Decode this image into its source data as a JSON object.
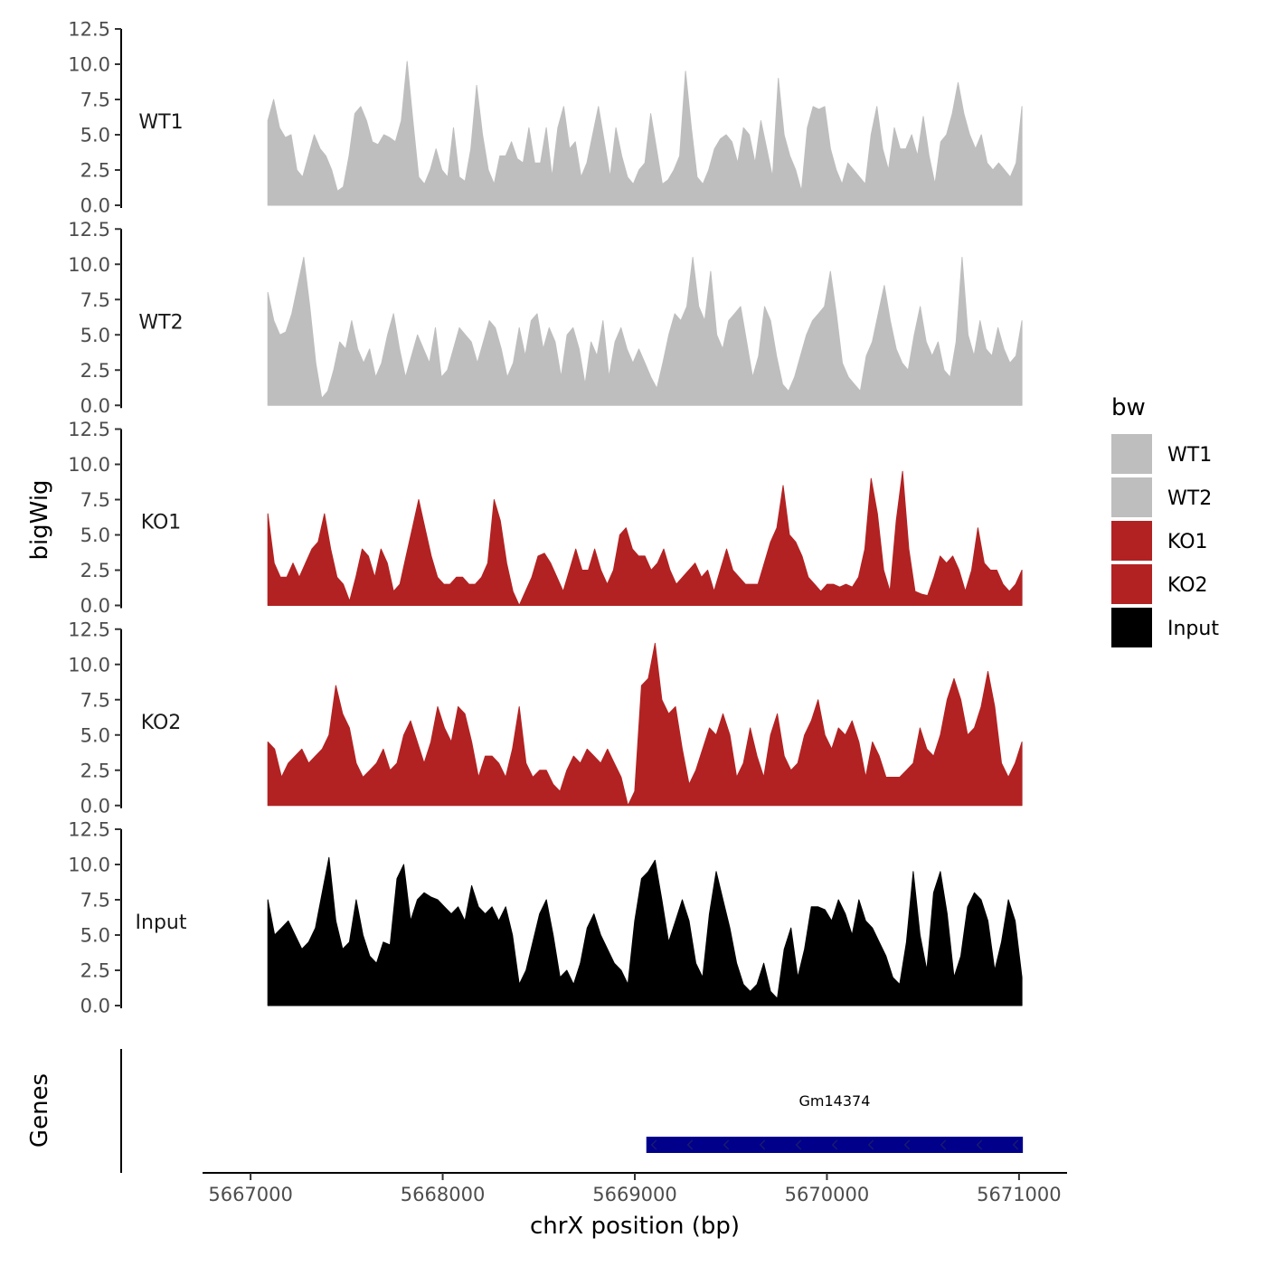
{
  "chart_data": {
    "type": "area",
    "ylabel": "bigWig",
    "xlabel": "chrX position (bp)",
    "y_ticks": [
      "0.0",
      "2.5",
      "5.0",
      "7.5",
      "10.0",
      "12.5"
    ],
    "y_tick_values": [
      0,
      2.5,
      5,
      7.5,
      10,
      12.5
    ],
    "ylim": [
      0,
      12.5
    ],
    "x_ticks": [
      "5667000",
      "5668000",
      "5669000",
      "5670000",
      "5671000"
    ],
    "x_tick_values": [
      5667000,
      5668000,
      5669000,
      5670000,
      5671000
    ],
    "xlim": [
      5666750,
      5671250
    ],
    "x_range": [
      5667000,
      5671000
    ],
    "series": [
      {
        "name": "WT1",
        "color": "#bebebe",
        "values": [
          6.0,
          7.5,
          5.5,
          4.8,
          5.0,
          2.5,
          2.0,
          3.5,
          5.0,
          4.0,
          3.5,
          2.5,
          1.0,
          1.3,
          3.5,
          6.5,
          7.0,
          6.0,
          4.5,
          4.3,
          5.0,
          4.8,
          4.5,
          6.0,
          10.2,
          6.0,
          2.0,
          1.5,
          2.5,
          4.0,
          2.5,
          2.0,
          5.5,
          2.0,
          1.7,
          4.0,
          8.5,
          5.0,
          2.5,
          1.5,
          3.5,
          3.5,
          4.5,
          3.3,
          3.0,
          5.5,
          3.0,
          3.0,
          5.5,
          2.0,
          5.5,
          7.0,
          4.0,
          4.5,
          2.0,
          3.0,
          5.0,
          7.0,
          4.5,
          2.0,
          5.5,
          3.5,
          2.0,
          1.5,
          2.5,
          3.0,
          6.5,
          4.0,
          1.5,
          1.8,
          2.5,
          3.5,
          9.5,
          5.5,
          2.0,
          1.5,
          2.5,
          4.0,
          4.7,
          5.0,
          4.5,
          3.0,
          5.5,
          5.0,
          3.0,
          6.0,
          4.0,
          2.0,
          9.0,
          5.0,
          3.5,
          2.5,
          1.0,
          5.5,
          7.0,
          6.8,
          7.0,
          4.0,
          2.5,
          1.5,
          3.0,
          2.5,
          2.0,
          1.5,
          5.0,
          7.0,
          4.0,
          2.5,
          5.5,
          4.0,
          4.0,
          5.0,
          3.5,
          6.3,
          3.5,
          1.5,
          4.5,
          5.0,
          6.5,
          8.7,
          6.5,
          5.0,
          4.0,
          5.0,
          3.0,
          2.5,
          3.0,
          2.5,
          2.0,
          3.0,
          7.0
        ],
        "tick_labels": [
          "0.0",
          "2.5",
          "5.0",
          "7.5",
          "10.0",
          "12.5"
        ]
      },
      {
        "name": "WT2",
        "color": "#bebebe",
        "values": [
          8.0,
          6.0,
          5.0,
          5.2,
          6.5,
          8.5,
          10.5,
          7.0,
          3.0,
          0.5,
          1.0,
          2.5,
          4.5,
          4.0,
          6.0,
          4.0,
          3.0,
          4.0,
          2.0,
          3.0,
          5.0,
          6.5,
          4.0,
          2.0,
          3.5,
          5.0,
          4.0,
          3.0,
          5.5,
          2.0,
          2.5,
          4.0,
          5.5,
          5.0,
          4.5,
          3.0,
          4.5,
          6.0,
          5.5,
          4.0,
          2.0,
          3.0,
          5.5,
          3.5,
          6.0,
          6.5,
          4.0,
          5.5,
          4.5,
          2.0,
          5.0,
          5.5,
          4.0,
          1.5,
          4.5,
          3.5,
          6.0,
          2.0,
          4.5,
          5.5,
          4.0,
          3.0,
          4.0,
          3.0,
          2.0,
          1.2,
          3.0,
          5.0,
          6.5,
          6.0,
          7.0,
          10.5,
          7.0,
          6.0,
          9.5,
          5.0,
          4.0,
          6.0,
          6.5,
          7.0,
          4.5,
          2.0,
          3.5,
          7.0,
          6.0,
          3.5,
          1.5,
          1.0,
          2.0,
          3.5,
          5.0,
          6.0,
          6.5,
          7.0,
          9.5,
          6.5,
          3.0,
          2.0,
          1.5,
          1.0,
          3.5,
          4.5,
          6.5,
          8.5,
          6.0,
          4.0,
          3.0,
          2.5,
          5.0,
          7.0,
          4.5,
          3.5,
          4.5,
          2.5,
          2.0,
          4.5,
          10.5,
          5.0,
          3.5,
          6.0,
          4.0,
          3.5,
          5.5,
          4.0,
          3.0,
          3.5,
          6.0
        ],
        "tick_labels": [
          "0.0",
          "2.5",
          "5.0",
          "7.5",
          "10.0",
          "12.5"
        ]
      },
      {
        "name": "KO1",
        "color": "#b22222",
        "values": [
          6.5,
          3.0,
          2.0,
          2.0,
          3.0,
          2.0,
          3.0,
          4.0,
          4.5,
          6.5,
          4.0,
          2.0,
          1.5,
          0.3,
          2.0,
          4.0,
          3.5,
          2.0,
          4.0,
          3.0,
          1.0,
          1.5,
          3.5,
          5.5,
          7.5,
          5.5,
          3.5,
          2.0,
          1.5,
          1.5,
          2.0,
          2.0,
          1.5,
          1.5,
          2.0,
          3.0,
          7.5,
          6.0,
          3.0,
          1.0,
          0.0,
          1.0,
          2.0,
          3.5,
          3.7,
          3.0,
          2.0,
          1.0,
          2.5,
          4.0,
          2.5,
          2.5,
          4.0,
          2.5,
          1.5,
          2.5,
          5.0,
          5.5,
          4.0,
          3.5,
          3.5,
          2.5,
          3.0,
          4.0,
          2.5,
          1.5,
          2.0,
          2.5,
          3.0,
          2.0,
          2.5,
          1.0,
          2.5,
          4.0,
          2.5,
          2.0,
          1.5,
          1.5,
          1.5,
          3.0,
          4.5,
          5.5,
          8.5,
          5.0,
          4.5,
          3.5,
          2.0,
          1.5,
          1.0,
          1.5,
          1.5,
          1.3,
          1.5,
          1.3,
          2.0,
          4.0,
          9.0,
          6.5,
          2.5,
          1.0,
          6.0,
          9.5,
          4.0,
          1.0,
          0.8,
          0.7,
          2.0,
          3.5,
          3.0,
          3.5,
          2.5,
          1.0,
          2.5,
          5.5,
          3.0,
          2.5,
          2.5,
          1.5,
          1.0,
          1.5,
          2.5
        ],
        "tick_labels": [
          "0.0",
          "2.5",
          "5.0",
          "7.5",
          "10.0",
          "12.5"
        ]
      },
      {
        "name": "KO2",
        "color": "#b22222",
        "values": [
          4.5,
          4.0,
          2.0,
          3.0,
          3.5,
          4.0,
          3.0,
          3.5,
          4.0,
          5.0,
          8.5,
          6.5,
          5.5,
          3.0,
          2.0,
          2.5,
          3.0,
          4.0,
          2.5,
          3.0,
          5.0,
          6.0,
          4.5,
          3.0,
          4.5,
          7.0,
          5.5,
          4.5,
          7.0,
          6.5,
          4.5,
          2.0,
          3.5,
          3.5,
          3.0,
          2.0,
          4.0,
          7.0,
          3.0,
          2.0,
          2.5,
          2.5,
          1.5,
          1.0,
          2.5,
          3.5,
          3.0,
          4.0,
          3.5,
          3.0,
          4.0,
          3.0,
          2.0,
          0.0,
          1.0,
          8.5,
          9.0,
          11.5,
          7.5,
          6.5,
          7.0,
          4.0,
          1.5,
          2.5,
          4.0,
          5.5,
          5.0,
          6.5,
          5.0,
          2.0,
          3.0,
          5.5,
          3.5,
          2.0,
          5.0,
          6.5,
          3.5,
          2.5,
          3.0,
          5.0,
          6.0,
          7.5,
          5.0,
          4.0,
          5.5,
          5.0,
          6.0,
          4.5,
          2.0,
          4.5,
          3.5,
          2.0,
          2.0,
          2.0,
          2.5,
          3.0,
          5.5,
          4.0,
          3.5,
          5.0,
          7.5,
          9.0,
          7.5,
          5.0,
          5.5,
          7.0,
          9.5,
          7.0,
          3.0,
          2.0,
          3.0,
          4.5
        ],
        "tick_labels": [
          "0.0",
          "2.5",
          "5.0",
          "7.5",
          "10.0",
          "12.5"
        ]
      },
      {
        "name": "Input",
        "color": "#000000",
        "values": [
          7.5,
          5.0,
          5.5,
          6.0,
          5.0,
          4.0,
          4.5,
          5.5,
          8.0,
          10.5,
          6.0,
          4.0,
          4.5,
          7.5,
          5.0,
          3.5,
          3.0,
          4.5,
          4.3,
          9.0,
          10.0,
          6.0,
          7.5,
          8.0,
          7.7,
          7.5,
          7.0,
          6.5,
          7.0,
          6.0,
          8.5,
          7.0,
          6.5,
          7.0,
          6.0,
          7.0,
          5.0,
          1.5,
          2.5,
          4.5,
          6.5,
          7.5,
          5.0,
          2.0,
          2.5,
          1.5,
          3.0,
          5.5,
          6.5,
          5.0,
          4.0,
          3.0,
          2.5,
          1.5,
          6.0,
          9.0,
          9.5,
          10.3,
          7.5,
          4.5,
          6.0,
          7.5,
          6.0,
          3.0,
          2.0,
          6.5,
          9.5,
          7.5,
          5.5,
          3.0,
          1.5,
          1.0,
          1.5,
          3.0,
          1.0,
          0.5,
          4.0,
          5.5,
          2.0,
          4.0,
          7.0,
          7.0,
          6.8,
          6.0,
          7.5,
          6.5,
          5.0,
          7.5,
          6.0,
          5.5,
          4.5,
          3.5,
          2.0,
          1.5,
          4.5,
          9.5,
          5.0,
          2.5,
          8.0,
          9.5,
          6.5,
          2.0,
          3.5,
          7.0,
          8.0,
          7.5,
          6.0,
          2.5,
          4.5,
          7.5,
          6.0,
          2.0
        ],
        "tick_labels": [
          "0.0",
          "2.5",
          "5.0",
          "7.5",
          "10.0",
          "12.5"
        ]
      }
    ],
    "genes_track": {
      "title": "Genes",
      "genes": [
        {
          "name": "Gm14374",
          "start": 5669060,
          "end": 5671020,
          "strand": "-",
          "color": "#00008b"
        }
      ]
    },
    "legend": {
      "title": "bw",
      "placement": "right",
      "entries": [
        {
          "label": "WT1",
          "color": "#bebebe"
        },
        {
          "label": "WT2",
          "color": "#bebebe"
        },
        {
          "label": "KO1",
          "color": "#b22222"
        },
        {
          "label": "KO2",
          "color": "#b22222"
        },
        {
          "label": "Input",
          "color": "#000000"
        }
      ]
    },
    "grid": false
  }
}
